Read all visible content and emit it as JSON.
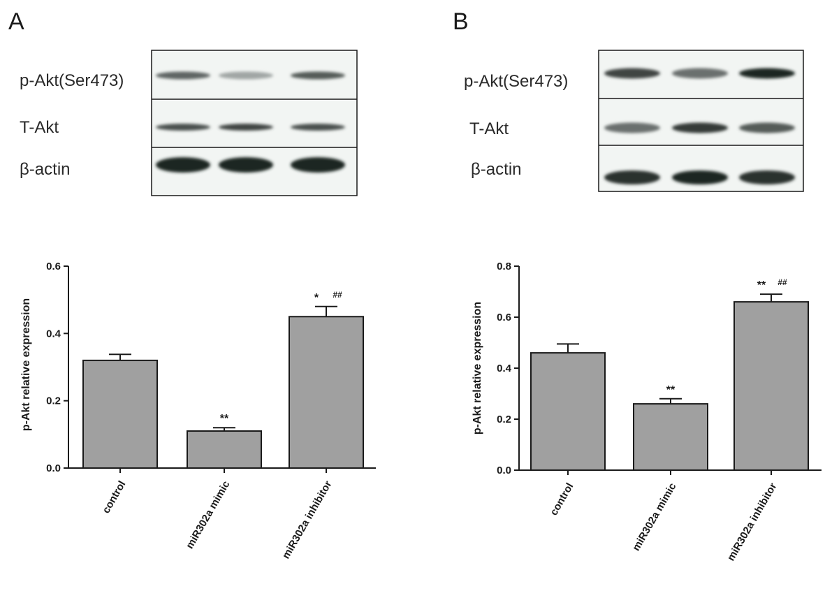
{
  "panels": [
    {
      "letter": "A",
      "blot": {
        "rows": [
          {
            "label": "p-Akt(Ser473)",
            "intensity": [
              0.65,
              0.35,
              0.7
            ]
          },
          {
            "label": "T-Akt",
            "intensity": [
              0.75,
              0.8,
              0.75
            ]
          },
          {
            "label": "β-actin",
            "intensity": [
              0.95,
              0.95,
              0.95
            ]
          }
        ]
      }
    },
    {
      "letter": "B",
      "blot": {
        "rows": [
          {
            "label": "p-Akt(Ser473)",
            "intensity": [
              0.8,
              0.6,
              0.95
            ]
          },
          {
            "label": "T-Akt",
            "intensity": [
              0.6,
              0.85,
              0.7
            ]
          },
          {
            "label": "β-actin",
            "intensity": [
              0.9,
              0.95,
              0.9
            ]
          }
        ]
      }
    }
  ],
  "chart_data": [
    {
      "type": "bar",
      "panel": "A",
      "categories": [
        "control",
        "miR302a mimic",
        "miR302a inhibitor"
      ],
      "values": [
        0.32,
        0.11,
        0.45
      ],
      "errors": [
        0.018,
        0.01,
        0.03
      ],
      "annotations": [
        {
          "stars": "",
          "hash": ""
        },
        {
          "stars": "**",
          "hash": ""
        },
        {
          "stars": "*",
          "hash": "##"
        }
      ],
      "ylabel": "p-Akt relative expression",
      "ylim": [
        0,
        0.6
      ],
      "yticks": [
        0.0,
        0.2,
        0.4,
        0.6
      ],
      "ytick_labels": [
        "0.0",
        "0.2",
        "0.4",
        "0.6"
      ],
      "bar_color": "#a0a0a0",
      "grid": false
    },
    {
      "type": "bar",
      "panel": "B",
      "categories": [
        "control",
        "miR302a mimic",
        "miR302a inhibitor"
      ],
      "values": [
        0.46,
        0.26,
        0.66
      ],
      "errors": [
        0.035,
        0.02,
        0.03
      ],
      "annotations": [
        {
          "stars": "",
          "hash": ""
        },
        {
          "stars": "**",
          "hash": ""
        },
        {
          "stars": "**",
          "hash": "##"
        }
      ],
      "ylabel": "p-Akt relative expression",
      "ylim": [
        0,
        0.8
      ],
      "yticks": [
        0.0,
        0.2,
        0.4,
        0.6,
        0.8
      ],
      "ytick_labels": [
        "0.0",
        "0.2",
        "0.4",
        "0.6",
        "0.8"
      ],
      "bar_color": "#a0a0a0",
      "grid": false
    }
  ]
}
